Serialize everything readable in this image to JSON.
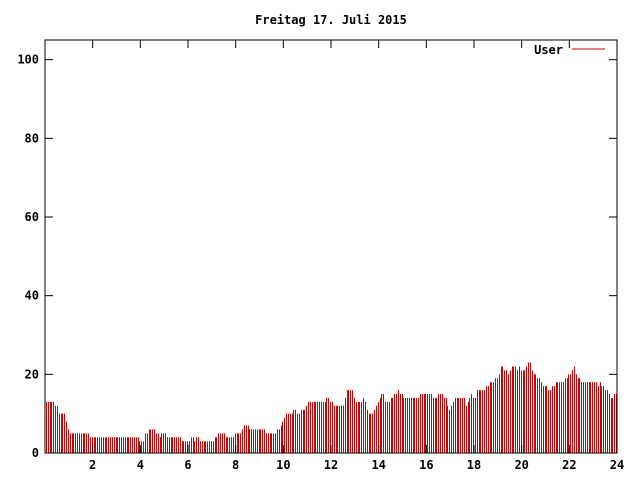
{
  "chart_data": {
    "type": "bar",
    "title": "Freitag 17. Juli 2015",
    "xlabel": "",
    "ylabel": "",
    "xlim": [
      0,
      24
    ],
    "ylim": [
      0,
      105
    ],
    "x_ticks": [
      2,
      4,
      6,
      8,
      10,
      12,
      14,
      16,
      18,
      20,
      22,
      24
    ],
    "y_ticks": [
      0,
      20,
      40,
      60,
      80,
      100
    ],
    "grid": false,
    "legend": {
      "position": "top-right"
    },
    "series": [
      {
        "name": "User",
        "color": "#cc0000",
        "values": [
          13,
          13,
          13,
          13,
          13,
          12,
          12,
          10,
          10,
          10,
          10,
          8,
          6,
          5,
          5,
          5,
          5,
          5,
          5,
          5,
          5,
          5,
          5,
          5,
          4,
          4,
          4,
          4,
          4,
          4,
          4,
          4,
          4,
          4,
          4,
          4,
          4,
          4,
          4,
          4,
          4,
          4,
          4,
          4,
          4,
          4,
          4,
          4,
          4,
          4,
          4,
          3,
          3,
          3,
          5,
          5,
          6,
          6,
          6,
          6,
          5,
          5,
          4,
          5,
          5,
          5,
          4,
          4,
          4,
          4,
          4,
          4,
          4,
          4,
          3,
          3,
          3,
          3,
          3,
          4,
          4,
          3,
          4,
          4,
          3,
          3,
          3,
          3,
          3,
          3,
          3,
          3,
          4,
          4,
          5,
          5,
          5,
          5,
          4,
          4,
          4,
          4,
          4,
          5,
          5,
          5,
          5,
          6,
          7,
          7,
          7,
          6,
          6,
          6,
          6,
          6,
          6,
          6,
          6,
          6,
          5,
          5,
          5,
          5,
          5,
          5,
          6,
          6,
          7,
          8,
          9,
          10,
          10,
          10,
          10,
          11,
          11,
          10,
          10,
          11,
          11,
          11,
          12,
          13,
          13,
          13,
          13,
          13,
          13,
          13,
          13,
          13,
          13,
          14,
          14,
          13,
          13,
          12,
          12,
          12,
          12,
          12,
          12,
          14,
          16,
          16,
          16,
          16,
          14,
          13,
          13,
          13,
          13,
          14,
          13,
          11,
          10,
          10,
          10,
          11,
          12,
          13,
          14,
          15,
          15,
          13,
          13,
          13,
          14,
          14,
          15,
          15,
          16,
          15,
          15,
          14,
          14,
          14,
          14,
          14,
          14,
          14,
          14,
          14,
          15,
          15,
          15,
          15,
          15,
          15,
          15,
          14,
          14,
          14,
          15,
          15,
          15,
          14,
          14,
          12,
          11,
          12,
          13,
          14,
          14,
          14,
          14,
          14,
          14,
          12,
          13,
          14,
          15,
          14,
          14,
          16,
          16,
          16,
          16,
          16,
          17,
          17,
          18,
          18,
          18,
          19,
          19,
          20,
          22,
          22,
          21,
          21,
          20,
          21,
          22,
          22,
          22,
          21,
          22,
          21,
          21,
          21,
          22,
          23,
          23,
          21,
          20,
          20,
          19,
          19,
          18,
          17,
          17,
          17,
          16,
          16,
          17,
          17,
          18,
          18,
          18,
          18,
          18,
          19,
          19,
          20,
          20,
          21,
          22,
          20,
          19,
          19,
          18,
          18,
          18,
          18,
          18,
          18,
          18,
          18,
          18,
          17,
          18,
          17,
          17,
          16,
          16,
          15,
          14,
          14,
          15,
          15
        ]
      }
    ]
  }
}
